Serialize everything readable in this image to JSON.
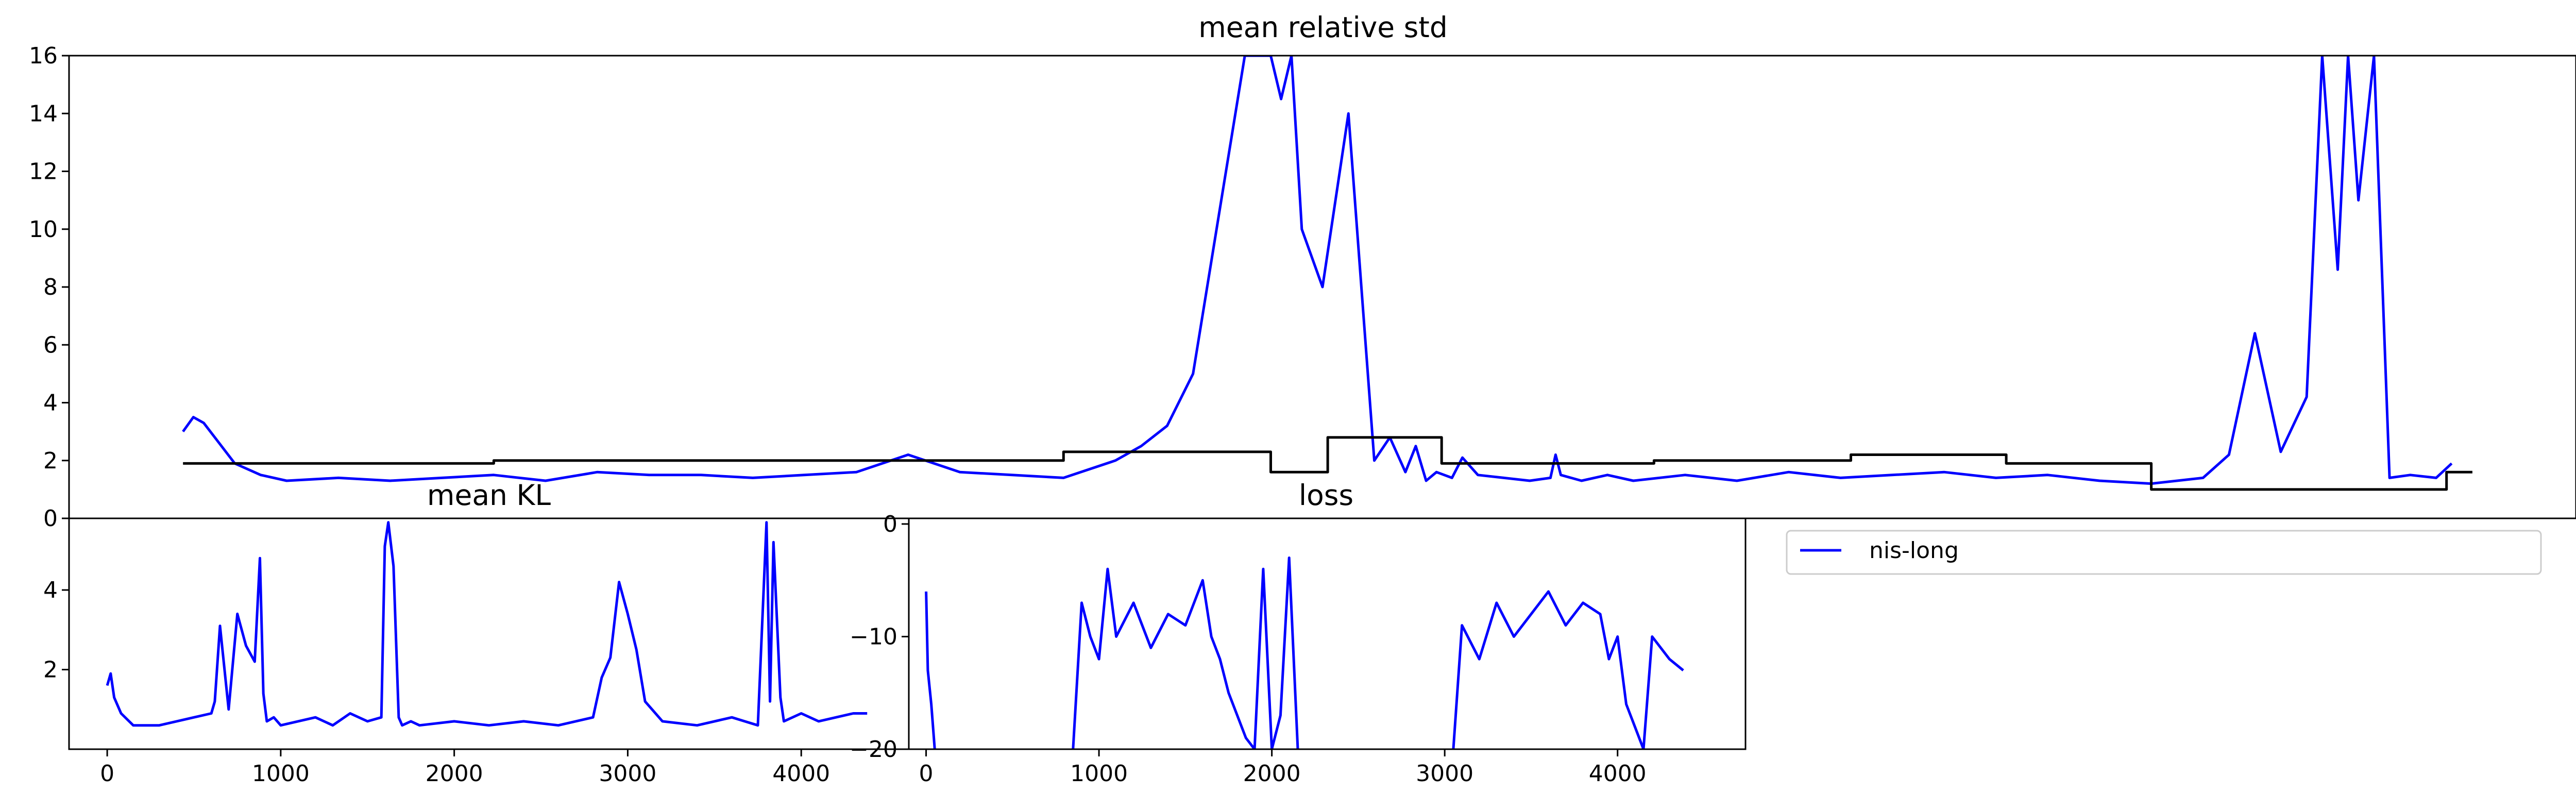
{
  "chart_data": [
    {
      "id": "top",
      "type": "line",
      "title": "mean relative std",
      "xlabel": "",
      "ylabel": "",
      "ylim": [
        0,
        16
      ],
      "xlim": [
        -220,
        4620
      ],
      "grid": false,
      "yticks": [
        0,
        2,
        4,
        6,
        8,
        10,
        12,
        14,
        16
      ],
      "ytick_labels": [
        "0",
        "2",
        "4",
        "6",
        "8",
        "10",
        "12",
        "14",
        "16"
      ],
      "xticks": [],
      "series": [
        {
          "color": "#0000ff",
          "x": [
            0,
            20,
            40,
            70,
            100,
            150,
            200,
            300,
            400,
            500,
            600,
            700,
            800,
            900,
            1000,
            1100,
            1200,
            1300,
            1400,
            1500,
            1600,
            1700,
            1800,
            1850,
            1900,
            1950,
            2000,
            2050,
            2100,
            2120,
            2140,
            2160,
            2200,
            2250,
            2300,
            2330,
            2360,
            2380,
            2400,
            2420,
            2450,
            2470,
            2500,
            2550,
            2600,
            2640,
            2650,
            2660,
            2700,
            2750,
            2800,
            2900,
            3000,
            3100,
            3200,
            3300,
            3400,
            3500,
            3600,
            3700,
            3800,
            3900,
            3950,
            4000,
            4050,
            4100,
            4130,
            4160,
            4180,
            4200,
            4230,
            4260,
            4300,
            4350,
            4380
          ],
          "y": [
            3.0,
            3.5,
            3.3,
            2.6,
            1.9,
            1.5,
            1.3,
            1.4,
            1.3,
            1.4,
            1.5,
            1.3,
            1.6,
            1.5,
            1.5,
            1.4,
            1.5,
            1.6,
            2.2,
            1.6,
            1.5,
            1.4,
            2.0,
            2.5,
            3.2,
            5.0,
            10.5,
            16.0,
            16.0,
            14.5,
            16.0,
            10.0,
            8.0,
            14.0,
            2.0,
            2.8,
            1.6,
            2.5,
            1.3,
            1.6,
            1.4,
            2.1,
            1.5,
            1.4,
            1.3,
            1.4,
            2.2,
            1.5,
            1.3,
            1.5,
            1.3,
            1.5,
            1.3,
            1.6,
            1.4,
            1.5,
            1.6,
            1.4,
            1.5,
            1.3,
            1.2,
            1.4,
            2.2,
            6.4,
            2.3,
            4.2,
            16.0,
            8.6,
            16.0,
            11.0,
            16.0,
            1.4,
            1.5,
            1.4,
            1.9
          ]
        },
        {
          "color": "#000000",
          "x": [
            0,
            600,
            1150,
            1700,
            2100,
            2210,
            2430,
            2840,
            3220,
            3520,
            3800,
            4370
          ],
          "y": [
            1.9,
            2.0,
            2.0,
            2.3,
            1.6,
            2.8,
            1.9,
            2.0,
            2.2,
            1.9,
            1.0,
            1.6
          ]
        }
      ]
    },
    {
      "id": "mean-kl",
      "type": "line",
      "title": "mean KL",
      "ylim": [
        0,
        5.8
      ],
      "xlim": [
        -220,
        4620
      ],
      "grid": false,
      "yticks": [
        2,
        4
      ],
      "ytick_labels": [
        "2",
        "4"
      ],
      "xticks": [
        0,
        1000,
        2000,
        3000,
        4000
      ],
      "xtick_labels": [
        "0",
        "1000",
        "2000",
        "3000",
        "4000"
      ],
      "series": [
        {
          "color": "#0000ff",
          "x": [
            0,
            20,
            40,
            80,
            150,
            300,
            500,
            600,
            620,
            650,
            700,
            750,
            800,
            850,
            880,
            900,
            920,
            960,
            1000,
            1100,
            1200,
            1300,
            1400,
            1500,
            1580,
            1600,
            1620,
            1650,
            1680,
            1700,
            1750,
            1800,
            2000,
            2200,
            2400,
            2600,
            2800,
            2850,
            2900,
            2950,
            3000,
            3050,
            3100,
            3200,
            3400,
            3600,
            3750,
            3800,
            3820,
            3840,
            3880,
            3900,
            4000,
            4100,
            4200,
            4300,
            4380
          ],
          "y": [
            1.6,
            1.9,
            1.3,
            0.9,
            0.6,
            0.6,
            0.8,
            0.9,
            1.2,
            3.1,
            1.0,
            3.4,
            2.6,
            2.2,
            4.8,
            1.4,
            0.7,
            0.8,
            0.6,
            0.7,
            0.8,
            0.6,
            0.9,
            0.7,
            0.8,
            5.1,
            5.7,
            4.6,
            0.8,
            0.6,
            0.7,
            0.6,
            0.7,
            0.6,
            0.7,
            0.6,
            0.8,
            1.8,
            2.3,
            4.2,
            3.4,
            2.5,
            1.2,
            0.7,
            0.6,
            0.8,
            0.6,
            5.7,
            1.2,
            5.2,
            1.3,
            0.7,
            0.9,
            0.7,
            0.8,
            0.9,
            0.9
          ]
        }
      ]
    },
    {
      "id": "loss",
      "type": "line",
      "title": "loss",
      "ylim": [
        -20,
        0.5
      ],
      "xlim": [
        -100,
        4740
      ],
      "grid": false,
      "yticks": [
        0,
        -10,
        -20
      ],
      "ytick_labels": [
        "0",
        "−10",
        "−20"
      ],
      "xticks": [
        0,
        1000,
        2000,
        3000,
        4000
      ],
      "xtick_labels": [
        "0",
        "1000",
        "2000",
        "3000",
        "4000"
      ],
      "series": [
        {
          "color": "#0000ff",
          "x": [
            0,
            10,
            30,
            50
          ],
          "y": [
            -6,
            -13,
            -16,
            -20
          ]
        },
        {
          "color": "#0000ff",
          "x": [
            850,
            900,
            950,
            1000,
            1050,
            1100,
            1200,
            1300,
            1400,
            1500,
            1600,
            1650,
            1700,
            1750,
            1800,
            1850,
            1900,
            1950,
            2000,
            2050,
            2100,
            2150
          ],
          "y": [
            -20,
            -7,
            -10,
            -12,
            -4,
            -10,
            -7,
            -11,
            -8,
            -9,
            -5,
            -10,
            -12,
            -15,
            -17,
            -19,
            -20,
            -4,
            -20,
            -17,
            -3,
            -20
          ]
        },
        {
          "color": "#0000ff",
          "x": [
            3050,
            3100,
            3200,
            3300,
            3400,
            3500,
            3600,
            3700,
            3800,
            3900,
            3950,
            4000,
            4050,
            4100,
            4150,
            4200,
            4300,
            4380
          ],
          "y": [
            -20,
            -9,
            -12,
            -7,
            -10,
            -8,
            -6,
            -9,
            -7,
            -8,
            -12,
            -10,
            -16,
            -18,
            -20,
            -10,
            -12,
            -13
          ]
        }
      ]
    }
  ],
  "legend": {
    "placement": "upper-left",
    "entries": [
      {
        "label": "nis-long",
        "color": "#0000ff"
      }
    ]
  }
}
